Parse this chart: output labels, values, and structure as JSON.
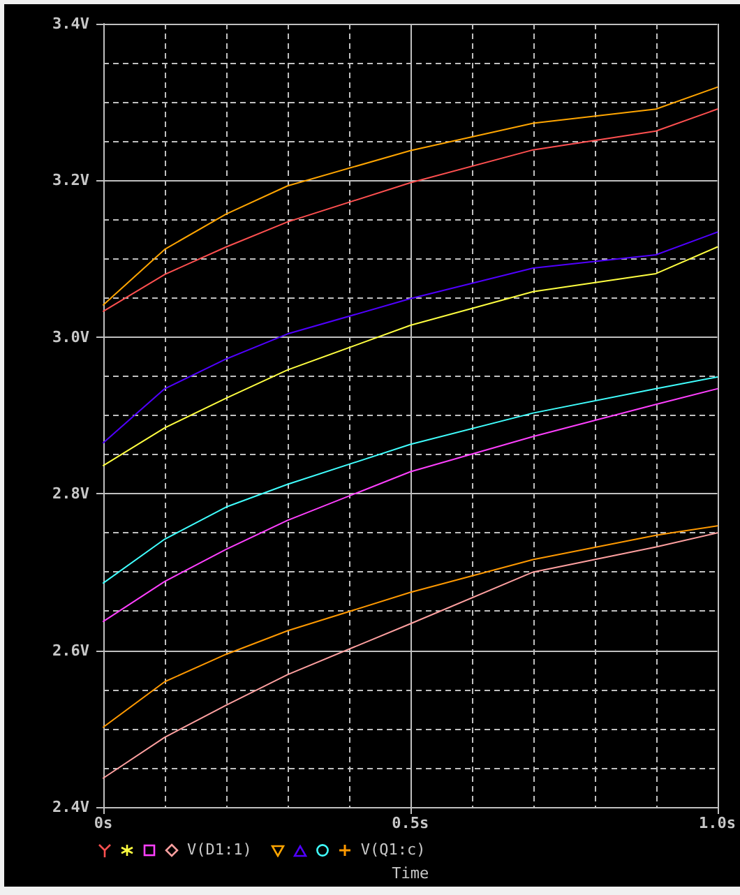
{
  "chart_data": {
    "type": "line",
    "xlabel": "Time",
    "xlim": [
      0,
      1.0
    ],
    "xticks": [
      {
        "value": 0,
        "label": "0s"
      },
      {
        "value": 0.5,
        "label": "0.5s"
      },
      {
        "value": 1.0,
        "label": "1.0s"
      }
    ],
    "ylim": [
      2.4,
      3.4
    ],
    "yticks": [
      {
        "value": 2.4,
        "label": "2.4V"
      },
      {
        "value": 2.6,
        "label": "2.6V"
      },
      {
        "value": 2.8,
        "label": "2.8V"
      },
      {
        "value": 3.0,
        "label": "3.0V"
      },
      {
        "value": 3.2,
        "label": "3.2V"
      },
      {
        "value": 3.4,
        "label": "3.4V"
      }
    ],
    "x": [
      0,
      0.1,
      0.2,
      0.3,
      0.5,
      0.7,
      0.9,
      1.0
    ],
    "grid": true,
    "legend": "bottom",
    "marker": "none",
    "series": [
      {
        "color": "#ff5050",
        "values": [
          3.033,
          3.08,
          3.115,
          3.147,
          3.197,
          3.239,
          3.263,
          3.291
        ]
      },
      {
        "color": "#ffff40",
        "values": [
          2.836,
          2.884,
          2.922,
          2.958,
          3.015,
          3.058,
          3.081,
          3.115
        ]
      },
      {
        "color": "#ff40ff",
        "values": [
          2.637,
          2.688,
          2.729,
          2.766,
          2.828,
          2.873,
          2.914,
          2.934
        ]
      },
      {
        "name": "V(D1:1)",
        "color": "#ffa0a0",
        "values": [
          2.437,
          2.489,
          2.53,
          2.569,
          2.634,
          2.7,
          2.732,
          2.75
        ]
      },
      {
        "color": "#ffa500",
        "values": [
          3.041,
          3.112,
          3.157,
          3.193,
          3.238,
          3.273,
          3.291,
          3.319
        ]
      },
      {
        "color": "#5000ff",
        "values": [
          2.865,
          2.934,
          2.972,
          3.004,
          3.049,
          3.088,
          3.105,
          3.134
        ]
      },
      {
        "color": "#40ffff",
        "values": [
          2.686,
          2.742,
          2.783,
          2.812,
          2.863,
          2.903,
          2.934,
          2.949
        ]
      },
      {
        "name": "V(Q1:c)",
        "color": "#ff9900",
        "values": [
          2.502,
          2.56,
          2.595,
          2.625,
          2.674,
          2.716,
          2.747,
          2.759
        ]
      }
    ]
  }
}
